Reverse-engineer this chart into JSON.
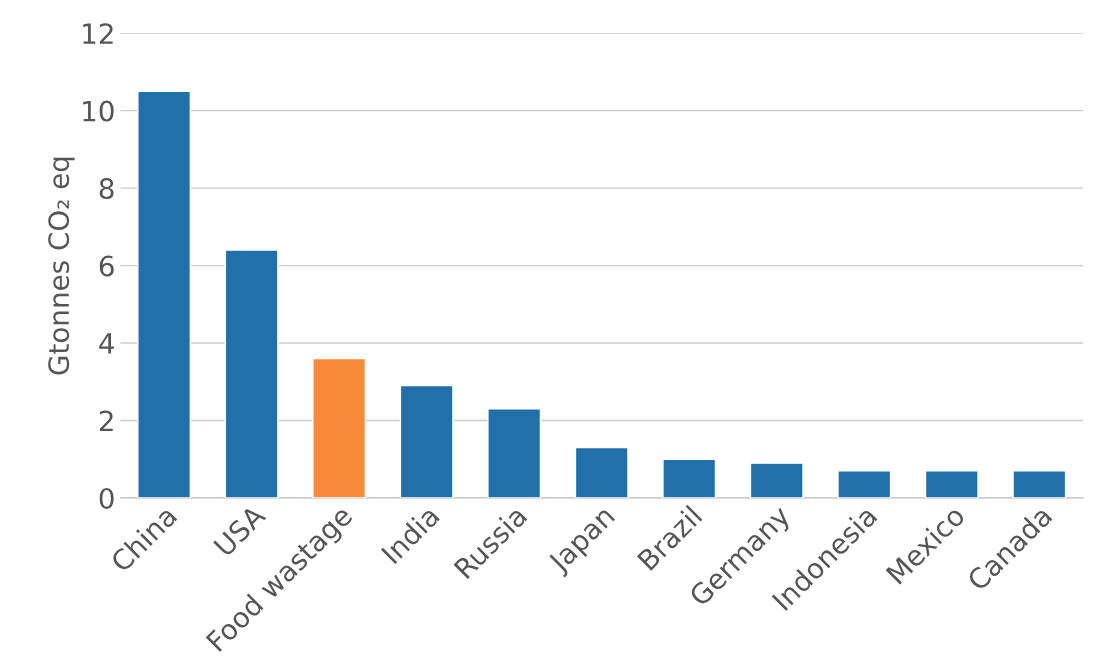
{
  "chart_data": {
    "type": "bar",
    "ylabel": "Gtonnes CO₂ eq",
    "categories": [
      "China",
      "USA",
      "Food wastage",
      "India",
      "Russia",
      "Japan",
      "Brazil",
      "Germany",
      "Indonesia",
      "Mexico",
      "Canada"
    ],
    "values": [
      10.5,
      6.4,
      3.6,
      2.9,
      2.3,
      1.3,
      1.0,
      0.9,
      0.7,
      0.7,
      0.7
    ],
    "colors": [
      "#2270aa",
      "#2270aa",
      "#fa8a3b",
      "#2270aa",
      "#2270aa",
      "#2270aa",
      "#2270aa",
      "#2270aa",
      "#2270aa",
      "#2270aa",
      "#2270aa"
    ],
    "ylim": [
      0,
      12
    ],
    "yticks": [
      0,
      2,
      4,
      6,
      8,
      10,
      12
    ],
    "grid": "y"
  }
}
